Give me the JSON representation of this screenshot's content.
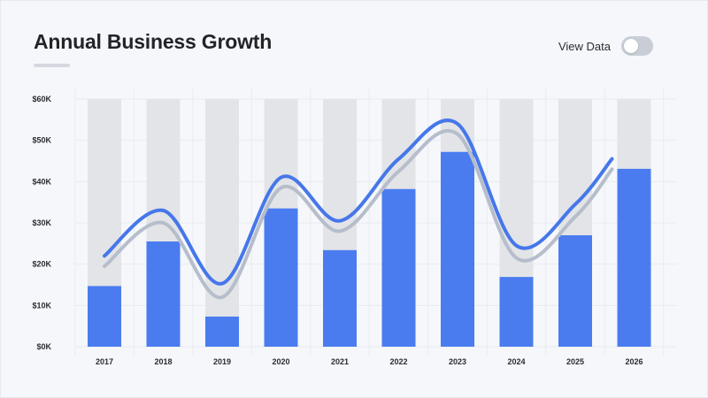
{
  "header": {
    "title": "Annual Business Growth",
    "toggle_label": "View Data",
    "toggle_on": false
  },
  "colors": {
    "bar": "#4a7cf0",
    "bar_background": "#e3e4e7",
    "line_primary": "#4677ea",
    "line_shadow": "#b6bdcb",
    "grid": "#e8ebf0"
  },
  "chart_data": {
    "type": "bar",
    "categories": [
      "2017",
      "2018",
      "2019",
      "2020",
      "2021",
      "2022",
      "2023",
      "2024",
      "2025",
      "2026"
    ],
    "values": [
      14.7,
      25.5,
      7.3,
      33.5,
      23.4,
      38.2,
      47.2,
      16.9,
      27.0,
      43.1
    ],
    "background_max": 60,
    "yticks": [
      "$0K",
      "$10K",
      "$20K",
      "$30K",
      "$40K",
      "$50K",
      "$60K"
    ],
    "ytick_values": [
      0,
      10,
      20,
      30,
      40,
      50,
      60
    ],
    "ylim": [
      0,
      60
    ],
    "grid": true,
    "series": [
      {
        "values": [
          22.0,
          33.0,
          15.3,
          41.0,
          30.5,
          45.5,
          54.0,
          24.5,
          34.5,
          45.5
        ]
      },
      {
        "values": [
          19.5,
          30.0,
          12.0,
          38.5,
          28.0,
          42.5,
          51.5,
          21.5,
          31.5,
          43.0
        ]
      }
    ],
    "title": "Annual Business Growth",
    "xlabel": "",
    "ylabel": ""
  }
}
